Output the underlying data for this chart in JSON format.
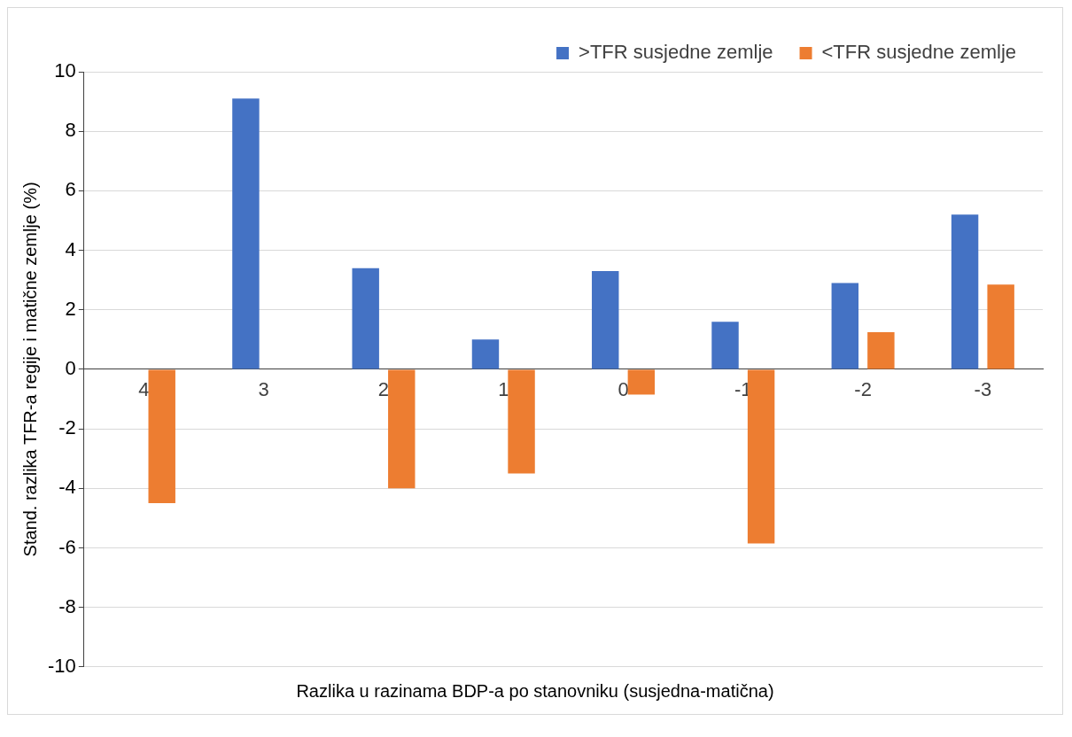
{
  "chart_data": {
    "type": "bar",
    "xlabel": "Razlika u razinama BDP-a po stanovniku (susjedna-matična)",
    "ylabel": "Stand. razlika TFR-a regije i matične zemlje (%)",
    "categories": [
      "4",
      "3",
      "2",
      "1",
      "0",
      "-1",
      "-2",
      "-3"
    ],
    "series": [
      {
        "name": ">TFR susjedne zemlje",
        "color": "#4472c4",
        "values": [
          null,
          9.1,
          3.4,
          1.0,
          3.3,
          1.6,
          2.9,
          5.2
        ]
      },
      {
        "name": "<TFR susjedne zemlje",
        "color": "#ed7d31",
        "values": [
          -4.5,
          null,
          -4.0,
          -3.5,
          -0.85,
          -5.85,
          1.25,
          2.85
        ]
      }
    ],
    "ylim": [
      -10,
      10
    ],
    "yticks": [
      -10,
      -8,
      -6,
      -4,
      -2,
      0,
      2,
      4,
      6,
      8,
      10
    ],
    "grid": "y",
    "legend": "top right"
  }
}
